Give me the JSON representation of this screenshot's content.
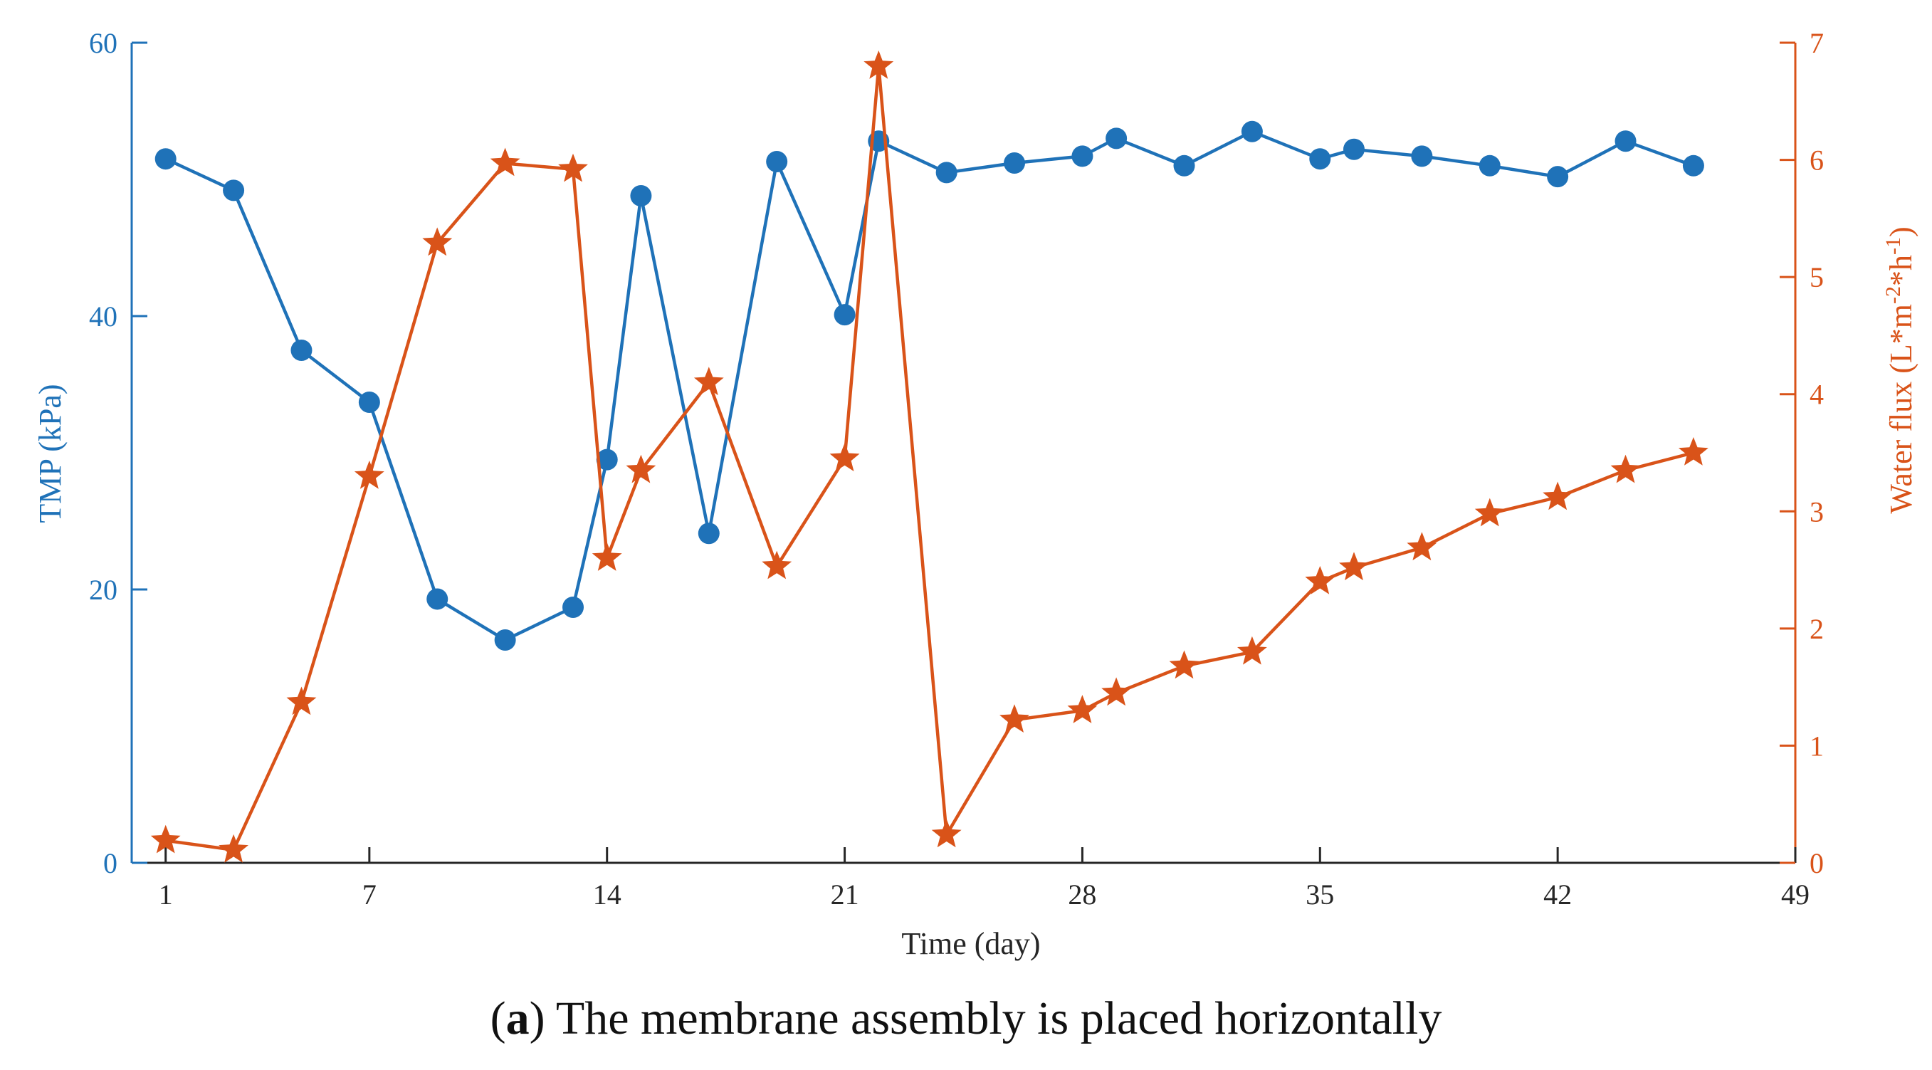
{
  "chart_data": {
    "type": "line",
    "caption_prefix": "(",
    "caption_bold": "a",
    "caption_rest": ") The membrane assembly is placed horizontally",
    "xlabel": "Time (day)",
    "xlim": [
      0,
      49
    ],
    "xticks": [
      1,
      7,
      14,
      21,
      28,
      35,
      42,
      49
    ],
    "y_left": {
      "label": "TMP (kPa)",
      "lim": [
        0,
        60
      ],
      "ticks": [
        0,
        20,
        40,
        60
      ],
      "color": "#1f72b8"
    },
    "y_right": {
      "label_main": "Water flux (L*m",
      "label_sup1": "-2",
      "label_mid": "*h",
      "label_sup2": "-1",
      "label_end": ")",
      "lim": [
        0,
        7
      ],
      "ticks": [
        0,
        1,
        2,
        3,
        4,
        5,
        6,
        7
      ],
      "color": "#d95319"
    },
    "series": [
      {
        "name": "TMP",
        "axis": "left",
        "marker": "circle",
        "color": "#1f72b8",
        "x": [
          1,
          3,
          5,
          7,
          9,
          11,
          13,
          14,
          15,
          17,
          19,
          21,
          22,
          24,
          26,
          28,
          29,
          31,
          33,
          35,
          36,
          38,
          40,
          42,
          44,
          46
        ],
        "values": [
          51.5,
          49.2,
          37.5,
          33.7,
          19.3,
          16.3,
          18.7,
          29.5,
          48.8,
          24.1,
          51.3,
          40.1,
          52.8,
          50.5,
          51.2,
          51.7,
          53.0,
          51.0,
          53.5,
          51.5,
          52.2,
          51.7,
          51.0,
          50.2,
          52.8,
          51.0
        ]
      },
      {
        "name": "Water flux",
        "axis": "right",
        "marker": "star",
        "color": "#d95319",
        "x": [
          1,
          3,
          5,
          7,
          9,
          11,
          13,
          14,
          15,
          17,
          19,
          21,
          22,
          24,
          26,
          28,
          29,
          31,
          33,
          35,
          36,
          38,
          40,
          42,
          44,
          46
        ],
        "values": [
          0.19,
          0.11,
          1.37,
          3.3,
          5.29,
          5.97,
          5.92,
          2.6,
          3.35,
          4.1,
          2.53,
          3.45,
          6.8,
          0.24,
          1.22,
          1.3,
          1.45,
          1.68,
          1.8,
          2.4,
          2.52,
          2.69,
          2.98,
          3.12,
          3.35,
          3.5
        ]
      }
    ]
  }
}
